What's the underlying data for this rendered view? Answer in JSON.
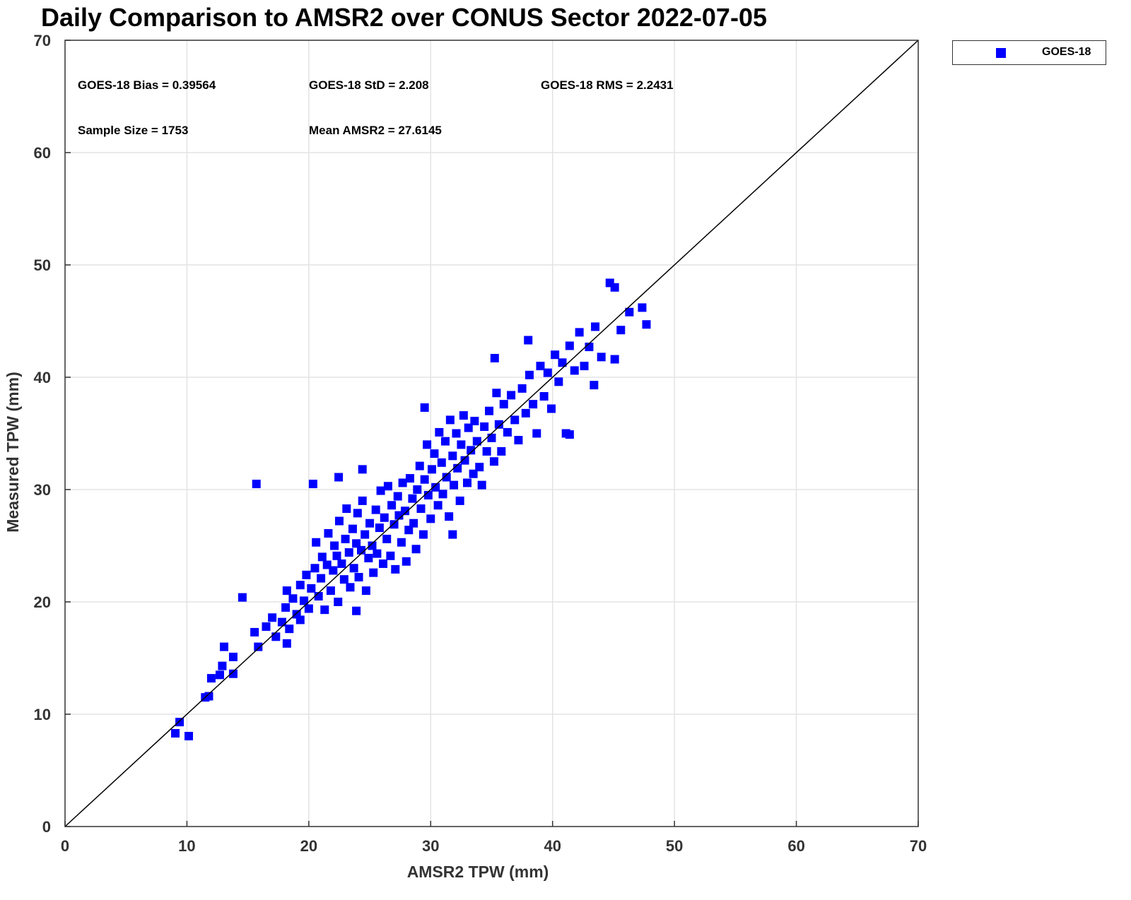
{
  "chart_data": {
    "type": "scatter",
    "title": "Daily Comparison to AMSR2 over CONUS Sector 2022-07-05",
    "xlabel": "AMSR2 TPW (mm)",
    "ylabel": "Measured TPW (mm)",
    "xlim": [
      0,
      70
    ],
    "ylim": [
      0,
      70
    ],
    "xticks": [
      "0",
      "10",
      "20",
      "30",
      "40",
      "50",
      "60",
      "70"
    ],
    "yticks": [
      "0",
      "10",
      "20",
      "30",
      "40",
      "50",
      "60",
      "70"
    ],
    "grid": true,
    "legend_position": "outside-top-right",
    "reference_line": {
      "type": "1:1",
      "from": [
        0,
        0
      ],
      "to": [
        70,
        70
      ],
      "color": "#000000"
    },
    "stats": {
      "bias": "GOES-18 Bias = 0.39564",
      "std": "GOES-18 StD = 2.208",
      "rms": "GOES-18 RMS = 2.2431",
      "sample_size": "Sample Size = 1753",
      "mean": "Mean AMSR2 = 27.6145"
    },
    "series": [
      {
        "name": "GOES-18",
        "color": "#0000ff",
        "marker": "square",
        "points": [
          [
            9.05,
            8.3
          ],
          [
            9.4,
            9.3
          ],
          [
            10.15,
            8.05
          ],
          [
            11.5,
            11.5
          ],
          [
            11.8,
            11.6
          ],
          [
            12.0,
            13.2
          ],
          [
            12.7,
            13.5
          ],
          [
            13.05,
            16.0
          ],
          [
            12.9,
            14.3
          ],
          [
            13.8,
            15.1
          ],
          [
            13.8,
            13.6
          ],
          [
            14.55,
            20.4
          ],
          [
            15.7,
            30.5
          ],
          [
            15.85,
            16.0
          ],
          [
            15.55,
            17.3
          ],
          [
            20.35,
            30.5
          ],
          [
            22.45,
            31.1
          ],
          [
            24.4,
            31.8
          ],
          [
            44.7,
            48.4
          ],
          [
            45.1,
            48.0
          ],
          [
            47.35,
            46.2
          ],
          [
            47.7,
            44.7
          ],
          [
            46.3,
            45.8
          ],
          [
            45.1,
            41.6
          ],
          [
            43.4,
            39.3
          ],
          [
            31.8,
            26.0
          ],
          [
            29.5,
            37.3
          ],
          [
            35.25,
            41.7
          ],
          [
            38.0,
            43.3
          ],
          [
            41.4,
            34.9
          ],
          [
            23.9,
            19.2
          ],
          [
            19.3,
            18.4
          ],
          [
            18.2,
            16.3
          ],
          [
            16.5,
            17.8
          ],
          [
            17.0,
            18.6
          ],
          [
            17.3,
            16.9
          ],
          [
            17.8,
            18.2
          ],
          [
            18.1,
            19.5
          ],
          [
            18.4,
            17.6
          ],
          [
            18.2,
            21.0
          ],
          [
            18.7,
            20.3
          ],
          [
            19.0,
            18.9
          ],
          [
            19.3,
            21.5
          ],
          [
            19.6,
            20.1
          ],
          [
            19.8,
            22.4
          ],
          [
            20.0,
            19.4
          ],
          [
            20.2,
            21.2
          ],
          [
            20.5,
            23.0
          ],
          [
            20.6,
            25.3
          ],
          [
            20.8,
            20.5
          ],
          [
            21.0,
            22.1
          ],
          [
            21.1,
            24.0
          ],
          [
            21.3,
            19.3
          ],
          [
            21.5,
            23.3
          ],
          [
            21.6,
            26.1
          ],
          [
            21.8,
            21.0
          ],
          [
            22.0,
            22.8
          ],
          [
            22.1,
            25.0
          ],
          [
            22.3,
            24.1
          ],
          [
            22.4,
            20.0
          ],
          [
            22.5,
            27.2
          ],
          [
            22.7,
            23.4
          ],
          [
            22.9,
            22.0
          ],
          [
            23.0,
            25.6
          ],
          [
            23.1,
            28.3
          ],
          [
            23.3,
            24.4
          ],
          [
            23.4,
            21.3
          ],
          [
            23.6,
            26.5
          ],
          [
            23.7,
            23.0
          ],
          [
            23.9,
            25.2
          ],
          [
            24.0,
            27.9
          ],
          [
            24.1,
            22.2
          ],
          [
            24.3,
            24.6
          ],
          [
            24.4,
            29.0
          ],
          [
            24.6,
            26.0
          ],
          [
            24.7,
            21.0
          ],
          [
            24.9,
            23.9
          ],
          [
            25.0,
            27.0
          ],
          [
            25.2,
            25.0
          ],
          [
            25.3,
            22.6
          ],
          [
            25.5,
            28.2
          ],
          [
            25.6,
            24.3
          ],
          [
            25.8,
            26.6
          ],
          [
            25.9,
            29.9
          ],
          [
            26.1,
            23.4
          ],
          [
            26.2,
            27.5
          ],
          [
            26.4,
            25.6
          ],
          [
            26.5,
            30.3
          ],
          [
            26.7,
            24.1
          ],
          [
            26.8,
            28.6
          ],
          [
            27.0,
            26.9
          ],
          [
            27.1,
            22.9
          ],
          [
            27.3,
            29.4
          ],
          [
            27.4,
            27.7
          ],
          [
            27.6,
            25.3
          ],
          [
            27.7,
            30.6
          ],
          [
            27.9,
            28.1
          ],
          [
            28.0,
            23.6
          ],
          [
            28.2,
            26.4
          ],
          [
            28.3,
            31.0
          ],
          [
            28.5,
            29.2
          ],
          [
            28.6,
            27.0
          ],
          [
            28.8,
            24.7
          ],
          [
            28.9,
            30.0
          ],
          [
            29.1,
            32.1
          ],
          [
            29.2,
            28.3
          ],
          [
            29.4,
            26.0
          ],
          [
            29.5,
            30.9
          ],
          [
            29.7,
            34.0
          ],
          [
            29.8,
            29.5
          ],
          [
            30.0,
            27.4
          ],
          [
            30.1,
            31.8
          ],
          [
            30.3,
            33.2
          ],
          [
            30.4,
            30.2
          ],
          [
            30.6,
            28.6
          ],
          [
            30.7,
            35.1
          ],
          [
            30.9,
            32.4
          ],
          [
            31.0,
            29.6
          ],
          [
            31.2,
            34.3
          ],
          [
            31.3,
            31.1
          ],
          [
            31.5,
            27.6
          ],
          [
            31.6,
            36.2
          ],
          [
            31.8,
            33.0
          ],
          [
            31.9,
            30.4
          ],
          [
            32.1,
            35.0
          ],
          [
            32.2,
            31.9
          ],
          [
            32.4,
            29.0
          ],
          [
            32.5,
            34.0
          ],
          [
            32.7,
            36.6
          ],
          [
            32.8,
            32.6
          ],
          [
            33.0,
            30.6
          ],
          [
            33.1,
            35.5
          ],
          [
            33.3,
            33.5
          ],
          [
            33.5,
            31.4
          ],
          [
            33.6,
            36.1
          ],
          [
            33.8,
            34.3
          ],
          [
            34.0,
            32.0
          ],
          [
            34.2,
            30.4
          ],
          [
            34.4,
            35.6
          ],
          [
            34.6,
            33.4
          ],
          [
            34.8,
            37.0
          ],
          [
            35.0,
            34.6
          ],
          [
            35.2,
            32.5
          ],
          [
            35.4,
            38.6
          ],
          [
            35.6,
            35.8
          ],
          [
            35.8,
            33.4
          ],
          [
            36.0,
            37.6
          ],
          [
            36.3,
            35.1
          ],
          [
            36.6,
            38.4
          ],
          [
            36.9,
            36.2
          ],
          [
            37.2,
            34.4
          ],
          [
            37.5,
            39.0
          ],
          [
            37.8,
            36.8
          ],
          [
            38.1,
            40.2
          ],
          [
            38.4,
            37.6
          ],
          [
            38.7,
            35.0
          ],
          [
            39.0,
            41.0
          ],
          [
            39.3,
            38.3
          ],
          [
            39.6,
            40.4
          ],
          [
            39.9,
            37.2
          ],
          [
            40.2,
            42.0
          ],
          [
            40.5,
            39.6
          ],
          [
            40.8,
            41.3
          ],
          [
            41.1,
            35.0
          ],
          [
            41.4,
            42.8
          ],
          [
            41.8,
            40.6
          ],
          [
            42.2,
            44.0
          ],
          [
            42.6,
            41.0
          ],
          [
            43.0,
            42.7
          ],
          [
            43.5,
            44.5
          ],
          [
            44.0,
            41.8
          ],
          [
            45.6,
            44.2
          ]
        ]
      }
    ]
  }
}
